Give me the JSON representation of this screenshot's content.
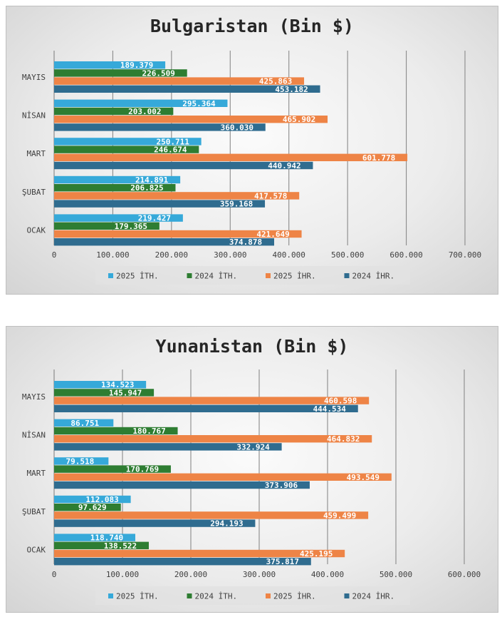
{
  "chart_data": [
    {
      "type": "bar",
      "orientation": "horizontal",
      "title": "Bulgaristan (Bin $)",
      "categories": [
        "OCAK",
        "ŞUBAT",
        "MART",
        "NİSAN",
        "MAYIS"
      ],
      "xlim": [
        0,
        700000
      ],
      "xticks": [
        0,
        100000,
        200000,
        300000,
        400000,
        500000,
        600000,
        700000
      ],
      "xtick_labels": [
        "0",
        "100.000",
        "200.000",
        "300.000",
        "400.000",
        "500.000",
        "600.000",
        "700.000"
      ],
      "grid": true,
      "legend_position": "bottom",
      "series": [
        {
          "name": "2025 İTH.",
          "color": "#36a9d9",
          "values": [
            219427,
            214891,
            250711,
            295364,
            189379
          ],
          "labels": [
            "219.427",
            "214.891",
            "250.711",
            "295.364",
            "189.379"
          ]
        },
        {
          "name": "2024 İTH.",
          "color": "#2e7d32",
          "values": [
            179365,
            206825,
            246674,
            203002,
            226509
          ],
          "labels": [
            "179.365",
            "206.825",
            "246.674",
            "203.002",
            "226.509"
          ]
        },
        {
          "name": "2025 İHR.",
          "color": "#ee8446",
          "values": [
            421649,
            417578,
            601778,
            465902,
            425863
          ],
          "labels": [
            "421.649",
            "417.578",
            "601.778",
            "465.902",
            "425.863"
          ]
        },
        {
          "name": "2024 İHR.",
          "color": "#2f6c8f",
          "values": [
            374878,
            359168,
            440942,
            360030,
            453182
          ],
          "labels": [
            "374.878",
            "359.168",
            "440.942",
            "360.030",
            "453.182"
          ]
        }
      ]
    },
    {
      "type": "bar",
      "orientation": "horizontal",
      "title": "Yunanistan (Bin $)",
      "categories": [
        "OCAK",
        "ŞUBAT",
        "MART",
        "NİSAN",
        "MAYIS"
      ],
      "xlim": [
        0,
        600000
      ],
      "xticks": [
        0,
        100000,
        200000,
        300000,
        400000,
        500000,
        600000
      ],
      "xtick_labels": [
        "0",
        "100.000",
        "200.000",
        "300.000",
        "400.000",
        "500.000",
        "600.000"
      ],
      "grid": true,
      "legend_position": "bottom",
      "series": [
        {
          "name": "2025 İTH.",
          "color": "#36a9d9",
          "values": [
            118740,
            112083,
            79518,
            86751,
            134523
          ],
          "labels": [
            "118.740",
            "112.083",
            "79.518",
            "86.751",
            "134.523"
          ]
        },
        {
          "name": "2024 İTH.",
          "color": "#2e7d32",
          "values": [
            138522,
            97629,
            170769,
            180767,
            145947
          ],
          "labels": [
            "138.522",
            "97.629",
            "170.769",
            "180.767",
            "145.947"
          ]
        },
        {
          "name": "2025 İHR.",
          "color": "#ee8446",
          "values": [
            425195,
            459499,
            493549,
            464832,
            460598
          ],
          "labels": [
            "425.195",
            "459.499",
            "493.549",
            "464.832",
            "460.598"
          ]
        },
        {
          "name": "2024 İHR.",
          "color": "#2f6c8f",
          "values": [
            375817,
            294193,
            373906,
            332924,
            444534
          ],
          "labels": [
            "375.817",
            "294.193",
            "373.906",
            "332.924",
            "444.534"
          ]
        }
      ]
    }
  ]
}
